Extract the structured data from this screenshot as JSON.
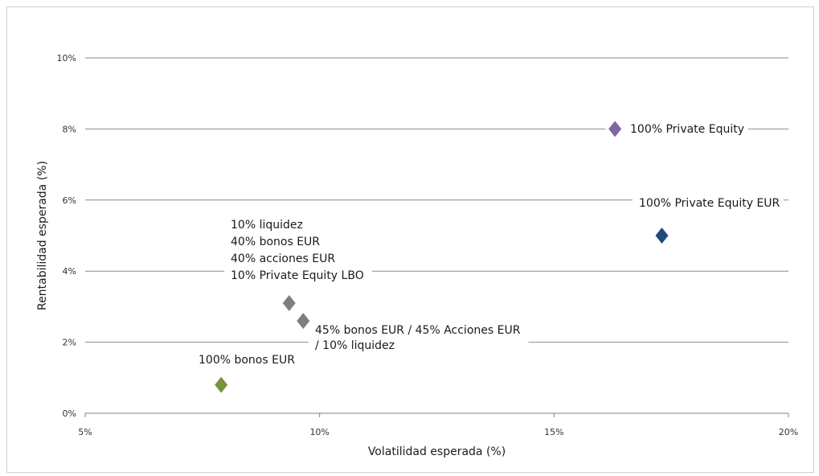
{
  "chart_data": {
    "type": "scatter",
    "xlabel": "Volatilidad esperada (%)",
    "ylabel": "Rentabilidad esperada (%)",
    "xlim": [
      5,
      20
    ],
    "ylim": [
      0,
      10
    ],
    "x_ticks": [
      5,
      10,
      15,
      20
    ],
    "y_ticks": [
      0,
      2,
      4,
      6,
      8,
      10
    ],
    "x_tick_labels": [
      "5%",
      "10%",
      "15%",
      "20%"
    ],
    "y_tick_labels": [
      "0%",
      "2%",
      "4%",
      "6%",
      "8%",
      "10%"
    ],
    "grid": "horizontal",
    "legend": "none",
    "marker": "diamond",
    "points": [
      {
        "x": 16.3,
        "y": 8.0,
        "color": "#8064A2",
        "label_lines": [
          "100% Private Equity"
        ]
      },
      {
        "x": 17.3,
        "y": 5.0,
        "color": "#1F497D",
        "label_lines": [
          "100% Private Equity EUR"
        ]
      },
      {
        "x": 9.35,
        "y": 3.1,
        "color": "#7F7F7F",
        "label_lines": [
          "10% liquidez",
          "40% bonos EUR",
          "40% acciones EUR",
          "10% Private Equity LBO"
        ]
      },
      {
        "x": 9.65,
        "y": 2.6,
        "color": "#7F7F7F",
        "label_lines": [
          "45% bonos EUR / 45% Acciones EUR",
          "/ 10% liquidez"
        ]
      },
      {
        "x": 7.9,
        "y": 0.8,
        "color": "#77933C",
        "label_lines": [
          "100% bonos EUR"
        ]
      }
    ]
  }
}
